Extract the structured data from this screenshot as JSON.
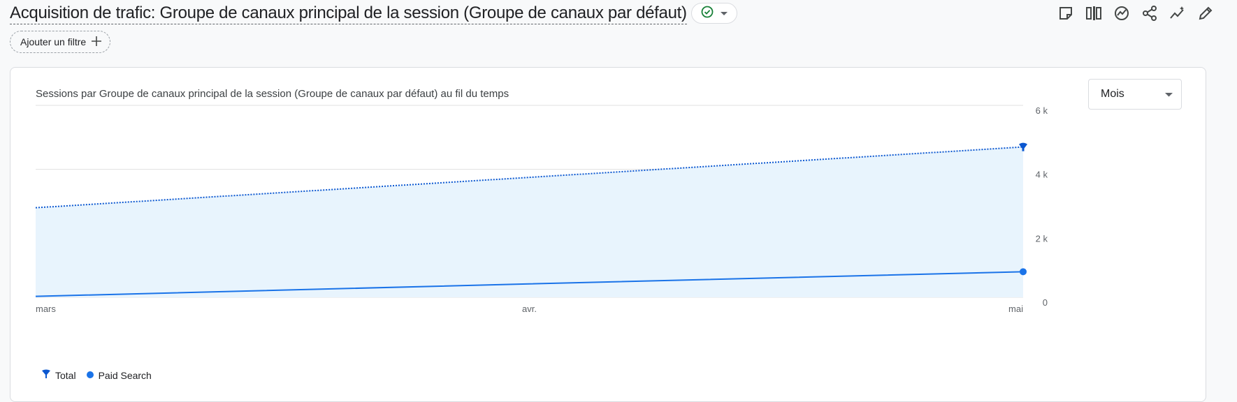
{
  "header": {
    "title": "Acquisition de trafic: Groupe de canaux principal de la session (Groupe de canaux par défaut)",
    "status_icon": "check-circle-icon",
    "status_color": "#188038"
  },
  "toolbar": {
    "icons": [
      "note-icon",
      "compare-icon",
      "insights-icon",
      "share-icon",
      "sparkle-icon",
      "edit-icon"
    ]
  },
  "filter": {
    "label": "Ajouter un filtre"
  },
  "card": {
    "chart_title": "Sessions par Groupe de canaux principal de la session (Groupe de canaux par défaut) au fil du temps",
    "period_label": "Mois"
  },
  "legend": {
    "items": [
      {
        "label": "Total",
        "color": "#1a73e8",
        "icon": "pin-icon"
      },
      {
        "label": "Paid Search",
        "color": "#1a73e8",
        "icon": "dot-icon"
      }
    ]
  },
  "chart_data": {
    "type": "line",
    "categories": [
      "mars",
      "avr.",
      "mai"
    ],
    "y_ticks": [
      "6 k",
      "4 k",
      "2 k",
      "0"
    ],
    "ylim": [
      0,
      6000
    ],
    "series": [
      {
        "name": "Total",
        "values": [
          2800,
          3750,
          4700
        ],
        "style": "dotted",
        "color": "#0b57d0",
        "fill": "#e8f4fd"
      },
      {
        "name": "Paid Search",
        "values": [
          30,
          420,
          800
        ],
        "style": "solid",
        "color": "#1a73e8"
      }
    ],
    "grid": true,
    "legend_position": "bottom-left"
  }
}
